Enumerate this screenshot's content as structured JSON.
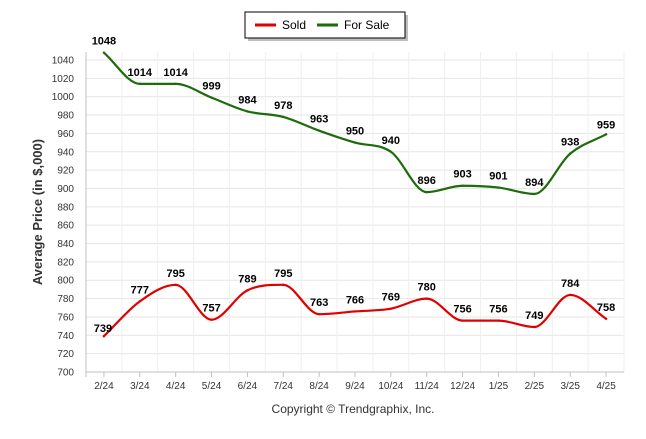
{
  "chart_data": {
    "type": "line",
    "title": "",
    "xlabel": "",
    "ylabel": "Average Price (in $,000)",
    "credit": "Copyright © Trendgraphix, Inc.",
    "categories": [
      "2/24",
      "3/24",
      "4/24",
      "5/24",
      "6/24",
      "7/24",
      "8/24",
      "9/24",
      "10/24",
      "11/24",
      "12/24",
      "1/25",
      "2/25",
      "3/25",
      "4/25"
    ],
    "ylim": [
      700,
      1040
    ],
    "yticks": [
      700,
      720,
      740,
      760,
      780,
      800,
      820,
      840,
      860,
      880,
      900,
      920,
      940,
      960,
      980,
      1000,
      1020,
      1040
    ],
    "grid": true,
    "legend_placement": "top-center",
    "series": [
      {
        "name": "Sold",
        "color": "#e00000",
        "values": [
          739,
          777,
          795,
          757,
          789,
          795,
          763,
          766,
          769,
          780,
          756,
          756,
          749,
          784,
          758
        ],
        "labels": [
          "739",
          "777",
          "795",
          "757",
          "789",
          "795",
          "763",
          "766",
          "769",
          "780",
          "756",
          "756",
          "749",
          "784",
          "758"
        ]
      },
      {
        "name": "For Sale",
        "color": "#1e6b0c",
        "values": [
          1048,
          1014,
          1014,
          999,
          984,
          978,
          963,
          950,
          940,
          896,
          903,
          901,
          894,
          938,
          959
        ],
        "labels": [
          "1048",
          "1014",
          "1014",
          "999",
          "984",
          "978",
          "963",
          "950",
          "940",
          "896",
          "903",
          "901",
          "894",
          "938",
          "959"
        ]
      }
    ]
  }
}
